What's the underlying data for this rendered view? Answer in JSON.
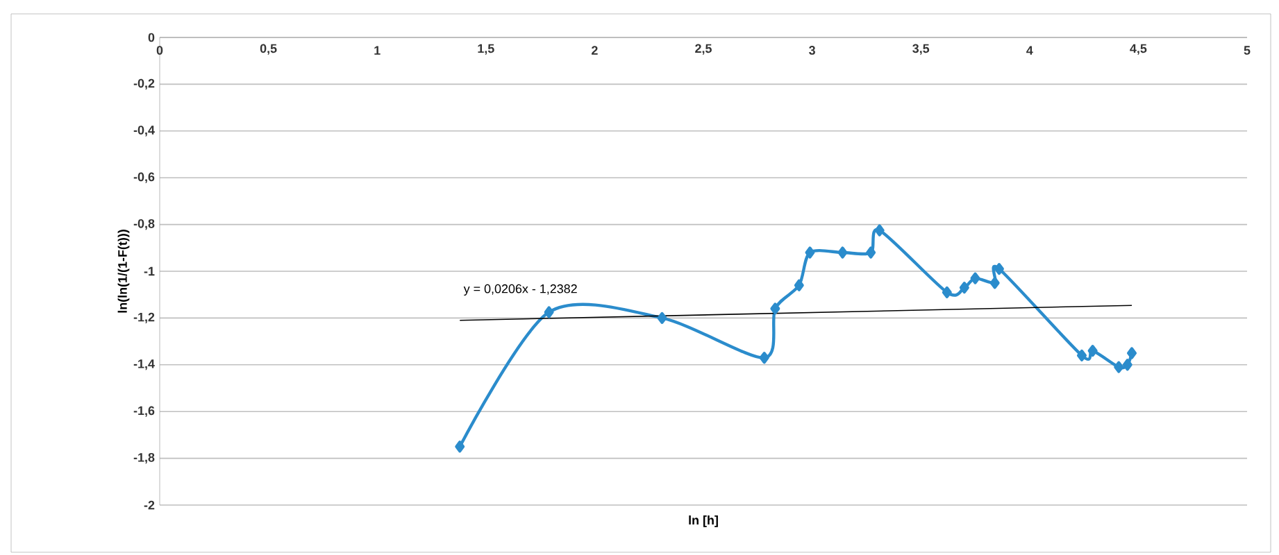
{
  "chart_data": {
    "type": "line",
    "xlabel": "ln [h]",
    "ylabel": "ln(ln(1/(1-F(t)))",
    "xlim": [
      0,
      5
    ],
    "xticks": [
      0,
      {
        "value": 0.5,
        "label": "0,5"
      },
      1,
      {
        "value": 1.5,
        "label": "1,5"
      },
      2,
      {
        "value": 2.5,
        "label": "2,5"
      },
      3,
      {
        "value": 3.5,
        "label": "3,5"
      },
      4,
      {
        "value": 4.5,
        "label": "4,5"
      },
      5
    ],
    "ylim": [
      -2,
      0
    ],
    "yticks": [
      {
        "value": -2,
        "label": "-2"
      },
      {
        "value": -1.8,
        "label": "-1,8"
      },
      {
        "value": -1.6,
        "label": "-1,6"
      },
      {
        "value": -1.4,
        "label": "-1,4"
      },
      {
        "value": -1.2,
        "label": "-1,2"
      },
      {
        "value": -1,
        "label": "-1"
      },
      {
        "value": -0.8,
        "label": "-0,8"
      },
      {
        "value": -0.6,
        "label": "-0,6"
      },
      {
        "value": -0.4,
        "label": "-0,4"
      },
      {
        "value": -0.2,
        "label": "-0,2"
      },
      0
    ],
    "grid": "y",
    "series": [
      {
        "color": "#2b8ccc",
        "marker": "diamond",
        "x": [
          1.38,
          1.79,
          2.31,
          2.78,
          2.83,
          2.94,
          2.99,
          3.14,
          3.27,
          3.31,
          3.62,
          3.7,
          3.75,
          3.84,
          3.86,
          4.24,
          4.29,
          4.41,
          4.45,
          4.47
        ],
        "values": [
          -1.75,
          -1.175,
          -1.2,
          -1.37,
          -1.16,
          -1.06,
          -0.92,
          -0.92,
          -0.92,
          -0.825,
          -1.09,
          -1.07,
          -1.03,
          -1.05,
          -0.99,
          -1.36,
          -1.34,
          -1.41,
          -1.4,
          -1.35
        ]
      },
      {
        "color": "#000000",
        "marker": "none",
        "x": [
          1.38,
          4.47
        ],
        "values": [
          -1.21,
          -1.146
        ]
      }
    ],
    "annotations": [
      "y = 0,0206x - 1,2382"
    ]
  }
}
